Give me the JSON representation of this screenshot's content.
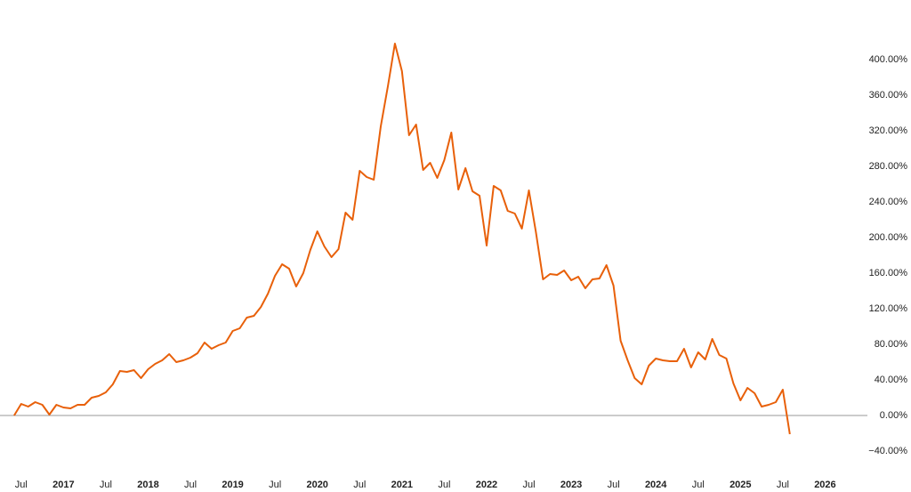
{
  "chart_data": {
    "type": "line",
    "x": [
      "2016-06",
      "2016-07",
      "2016-08",
      "2016-09",
      "2016-10",
      "2016-11",
      "2016-12",
      "2017-01",
      "2017-02",
      "2017-03",
      "2017-04",
      "2017-05",
      "2017-06",
      "2017-07",
      "2017-08",
      "2017-09",
      "2017-10",
      "2017-11",
      "2017-12",
      "2018-01",
      "2018-02",
      "2018-03",
      "2018-04",
      "2018-05",
      "2018-06",
      "2018-07",
      "2018-08",
      "2018-09",
      "2018-10",
      "2018-11",
      "2018-12",
      "2019-01",
      "2019-02",
      "2019-03",
      "2019-04",
      "2019-05",
      "2019-06",
      "2019-07",
      "2019-08",
      "2019-09",
      "2019-10",
      "2019-11",
      "2019-12",
      "2020-01",
      "2020-02",
      "2020-03",
      "2020-04",
      "2020-05",
      "2020-06",
      "2020-07",
      "2020-08",
      "2020-09",
      "2020-10",
      "2020-11",
      "2020-12",
      "2021-01",
      "2021-02",
      "2021-03",
      "2021-04",
      "2021-05",
      "2021-06",
      "2021-07",
      "2021-08",
      "2021-09",
      "2021-10",
      "2021-11",
      "2021-12",
      "2022-01",
      "2022-02",
      "2022-03",
      "2022-04",
      "2022-05",
      "2022-06",
      "2022-07",
      "2022-08",
      "2022-09",
      "2022-10",
      "2022-11",
      "2022-12",
      "2023-01",
      "2023-02",
      "2023-03",
      "2023-04",
      "2023-05",
      "2023-06",
      "2023-07",
      "2023-08",
      "2023-09",
      "2023-10",
      "2023-11",
      "2023-12",
      "2024-01",
      "2024-02",
      "2024-03",
      "2024-04",
      "2024-05",
      "2024-06",
      "2024-07",
      "2024-08",
      "2024-09",
      "2024-10",
      "2024-11",
      "2024-12",
      "2025-01",
      "2025-02",
      "2025-03",
      "2025-04",
      "2025-05",
      "2025-06",
      "2025-07",
      "2025-08"
    ],
    "series": [
      {
        "color": "#e8600a",
        "values": [
          0,
          13,
          10,
          15,
          12,
          1,
          12,
          9,
          8,
          12,
          12,
          20,
          22,
          26,
          35,
          50,
          49,
          51,
          42,
          52,
          58,
          62,
          69,
          60,
          62,
          65,
          70,
          82,
          75,
          79,
          82,
          95,
          98,
          110,
          112,
          122,
          137,
          157,
          170,
          165,
          145,
          160,
          186,
          207,
          190,
          178,
          187,
          228,
          220,
          275,
          268,
          265,
          325,
          370,
          418,
          387,
          315,
          327,
          276,
          284,
          267,
          287,
          318,
          254,
          278,
          252,
          247,
          191,
          258,
          253,
          230,
          227,
          210,
          253,
          206,
          153,
          159,
          158,
          163,
          152,
          156,
          143,
          153,
          154,
          169,
          146,
          84,
          62,
          42,
          35,
          56,
          64,
          62,
          61,
          61,
          75,
          54,
          71,
          63,
          86,
          68,
          64,
          36,
          17,
          31,
          25,
          10,
          12,
          15,
          29,
          -21
        ]
      }
    ],
    "xlim": [
      "2016-04",
      "2026-07"
    ],
    "xticks": [
      {
        "value": "2016-07",
        "label": "Jul"
      },
      {
        "value": "2017-01",
        "label": "2017"
      },
      {
        "value": "2017-07",
        "label": "Jul"
      },
      {
        "value": "2018-01",
        "label": "2018"
      },
      {
        "value": "2018-07",
        "label": "Jul"
      },
      {
        "value": "2019-01",
        "label": "2019"
      },
      {
        "value": "2019-07",
        "label": "Jul"
      },
      {
        "value": "2020-01",
        "label": "2020"
      },
      {
        "value": "2020-07",
        "label": "Jul"
      },
      {
        "value": "2021-01",
        "label": "2021"
      },
      {
        "value": "2021-07",
        "label": "Jul"
      },
      {
        "value": "2022-01",
        "label": "2022"
      },
      {
        "value": "2022-07",
        "label": "Jul"
      },
      {
        "value": "2023-01",
        "label": "2023"
      },
      {
        "value": "2023-07",
        "label": "Jul"
      },
      {
        "value": "2024-01",
        "label": "2024"
      },
      {
        "value": "2024-07",
        "label": "Jul"
      },
      {
        "value": "2025-01",
        "label": "2025"
      },
      {
        "value": "2025-07",
        "label": "Jul"
      },
      {
        "value": "2026-01",
        "label": "2026"
      }
    ],
    "ylim": [
      -58,
      467
    ],
    "yticks": [
      {
        "value": -40,
        "label": "−40.00%"
      },
      {
        "value": 0,
        "label": "0.00%"
      },
      {
        "value": 40,
        "label": "40.00%"
      },
      {
        "value": 80,
        "label": "80.00%"
      },
      {
        "value": 120,
        "label": "120.00%"
      },
      {
        "value": 160,
        "label": "160.00%"
      },
      {
        "value": 200,
        "label": "200.00%"
      },
      {
        "value": 240,
        "label": "240.00%"
      },
      {
        "value": 280,
        "label": "280.00%"
      },
      {
        "value": 320,
        "label": "320.00%"
      },
      {
        "value": 360,
        "label": "360.00%"
      },
      {
        "value": 400,
        "label": "400.00%"
      }
    ]
  }
}
